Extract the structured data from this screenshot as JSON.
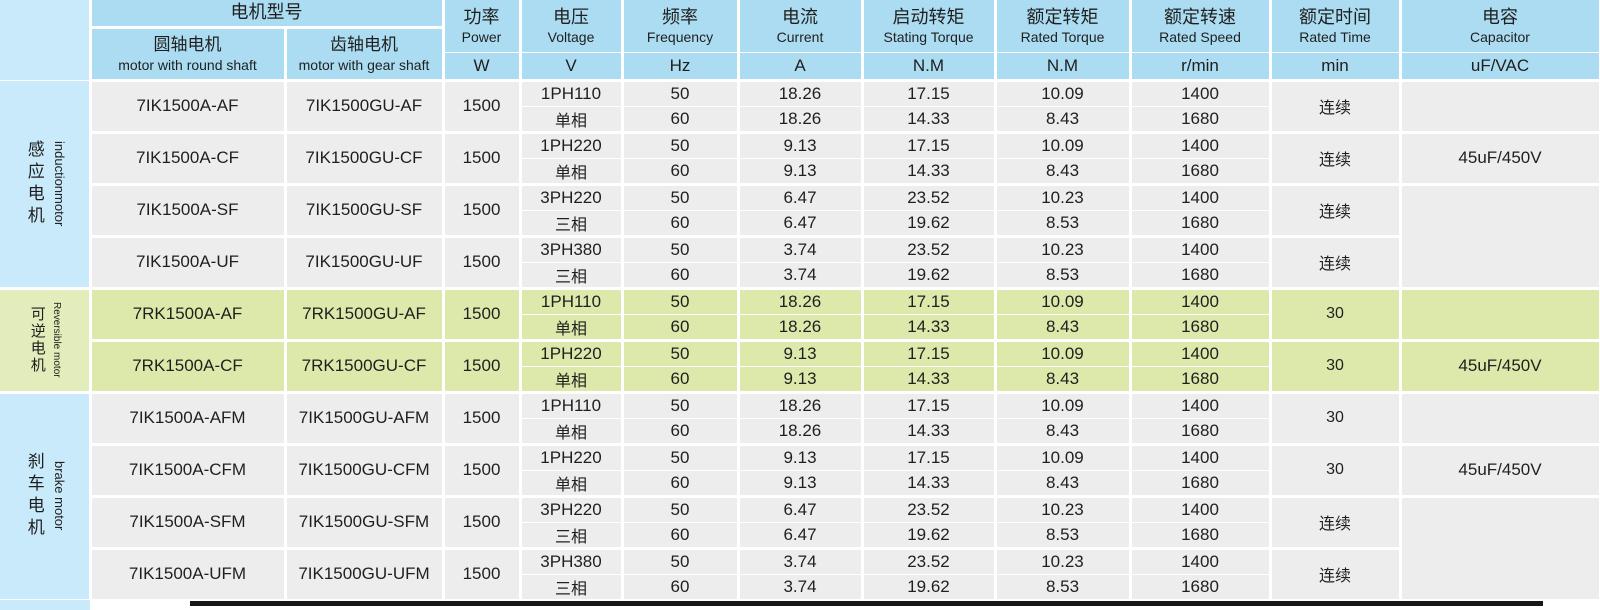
{
  "colors": {
    "header_blue": "#abdcf2",
    "label_blue": "#c8eafa",
    "row_gray": "#ededed",
    "green_row": "#dde9ab",
    "green_label": "#e3edbc",
    "border_white": "#ffffff",
    "bottom_rule": "#171717"
  },
  "table": {
    "header": {
      "model_group": "电机型号",
      "columns": [
        {
          "cn": "圆轴电机",
          "en": "motor with round shaft"
        },
        {
          "cn": "齿轴电机",
          "en": "motor with gear shaft"
        },
        {
          "cn": "功率",
          "en": "Power",
          "unit": "W"
        },
        {
          "cn": "电压",
          "en": "Voltage",
          "unit": "V"
        },
        {
          "cn": "频率",
          "en": "Frequency",
          "unit": "Hz"
        },
        {
          "cn": "电流",
          "en": "Current",
          "unit": "A"
        },
        {
          "cn": "启动转矩",
          "en": "Stating Torque",
          "unit": "N.M"
        },
        {
          "cn": "额定转矩",
          "en": "Rated Torque",
          "unit": "N.M"
        },
        {
          "cn": "额定转速",
          "en": "Rated Speed",
          "unit": "r/min"
        },
        {
          "cn": "额定时间",
          "en": "Rated Time",
          "unit": "min"
        },
        {
          "cn": "电容",
          "en": "Capacitor",
          "unit": "uF/VAC"
        }
      ]
    },
    "groups": [
      {
        "label_cn": "感应电机",
        "label_en": "inductionmotor",
        "theme": "gray",
        "rows": [
          {
            "round": "7IK1500A-AF",
            "gear": "7IK1500GU-AF",
            "power": "1500",
            "voltage": "1PH110",
            "phase": "单相",
            "time": "连续",
            "capacitor": {
              "text": "",
              "span": 1
            },
            "sub": [
              {
                "freq": "50",
                "current": "18.26",
                "start_torque": "17.15",
                "rated_torque": "10.09",
                "speed": "1400"
              },
              {
                "freq": "60",
                "current": "18.26",
                "start_torque": "14.33",
                "rated_torque": "8.43",
                "speed": "1680"
              }
            ]
          },
          {
            "round": "7IK1500A-CF",
            "gear": "7IK1500GU-CF",
            "power": "1500",
            "voltage": "1PH220",
            "phase": "单相",
            "time": "连续",
            "capacitor": {
              "text": "45uF/450V",
              "span": 1
            },
            "sub": [
              {
                "freq": "50",
                "current": "9.13",
                "start_torque": "17.15",
                "rated_torque": "10.09",
                "speed": "1400"
              },
              {
                "freq": "60",
                "current": "9.13",
                "start_torque": "14.33",
                "rated_torque": "8.43",
                "speed": "1680"
              }
            ]
          },
          {
            "round": "7IK1500A-SF",
            "gear": "7IK1500GU-SF",
            "power": "1500",
            "voltage": "3PH220",
            "phase": "三相",
            "time": "连续",
            "capacitor": {
              "text": "",
              "span": 2
            },
            "sub": [
              {
                "freq": "50",
                "current": "6.47",
                "start_torque": "23.52",
                "rated_torque": "10.23",
                "speed": "1400"
              },
              {
                "freq": "60",
                "current": "6.47",
                "start_torque": "19.62",
                "rated_torque": "8.53",
                "speed": "1680"
              }
            ]
          },
          {
            "round": "7IK1500A-UF",
            "gear": "7IK1500GU-UF",
            "power": "1500",
            "voltage": "3PH380",
            "phase": "三相",
            "time": "连续",
            "capacitor": null,
            "sub": [
              {
                "freq": "50",
                "current": "3.74",
                "start_torque": "23.52",
                "rated_torque": "10.23",
                "speed": "1400"
              },
              {
                "freq": "60",
                "current": "3.74",
                "start_torque": "19.62",
                "rated_torque": "8.53",
                "speed": "1680"
              }
            ]
          }
        ]
      },
      {
        "label_cn": "可逆电机",
        "label_en": "Reversible motor",
        "theme": "green",
        "rows": [
          {
            "round": "7RK1500A-AF",
            "gear": "7RK1500GU-AF",
            "power": "1500",
            "voltage": "1PH110",
            "phase": "单相",
            "time": "30",
            "capacitor": {
              "text": "",
              "span": 1
            },
            "sub": [
              {
                "freq": "50",
                "current": "18.26",
                "start_torque": "17.15",
                "rated_torque": "10.09",
                "speed": "1400"
              },
              {
                "freq": "60",
                "current": "18.26",
                "start_torque": "14.33",
                "rated_torque": "8.43",
                "speed": "1680"
              }
            ]
          },
          {
            "round": "7RK1500A-CF",
            "gear": "7RK1500GU-CF",
            "power": "1500",
            "voltage": "1PH220",
            "phase": "单相",
            "time": "30",
            "capacitor": {
              "text": "45uF/450V",
              "span": 1
            },
            "sub": [
              {
                "freq": "50",
                "current": "9.13",
                "start_torque": "17.15",
                "rated_torque": "10.09",
                "speed": "1400"
              },
              {
                "freq": "60",
                "current": "9.13",
                "start_torque": "14.33",
                "rated_torque": "8.43",
                "speed": "1680"
              }
            ]
          }
        ]
      },
      {
        "label_cn": "刹车电机",
        "label_en": "brake motor",
        "theme": "gray",
        "rows": [
          {
            "round": "7IK1500A-AFM",
            "gear": "7IK1500GU-AFM",
            "power": "1500",
            "voltage": "1PH110",
            "phase": "单相",
            "time": "30",
            "capacitor": {
              "text": "",
              "span": 1
            },
            "sub": [
              {
                "freq": "50",
                "current": "18.26",
                "start_torque": "17.15",
                "rated_torque": "10.09",
                "speed": "1400"
              },
              {
                "freq": "60",
                "current": "18.26",
                "start_torque": "14.33",
                "rated_torque": "8.43",
                "speed": "1680"
              }
            ]
          },
          {
            "round": "7IK1500A-CFM",
            "gear": "7IK1500GU-CFM",
            "power": "1500",
            "voltage": "1PH220",
            "phase": "单相",
            "time": "30",
            "capacitor": {
              "text": "45uF/450V",
              "span": 1
            },
            "sub": [
              {
                "freq": "50",
                "current": "9.13",
                "start_torque": "17.15",
                "rated_torque": "10.09",
                "speed": "1400"
              },
              {
                "freq": "60",
                "current": "9.13",
                "start_torque": "14.33",
                "rated_torque": "8.43",
                "speed": "1680"
              }
            ]
          },
          {
            "round": "7IK1500A-SFM",
            "gear": "7IK1500GU-SFM",
            "power": "1500",
            "voltage": "3PH220",
            "phase": "三相",
            "time": "连续",
            "capacitor": {
              "text": "",
              "span": 2
            },
            "sub": [
              {
                "freq": "50",
                "current": "6.47",
                "start_torque": "23.52",
                "rated_torque": "10.23",
                "speed": "1400"
              },
              {
                "freq": "60",
                "current": "6.47",
                "start_torque": "19.62",
                "rated_torque": "8.53",
                "speed": "1680"
              }
            ]
          },
          {
            "round": "7IK1500A-UFM",
            "gear": "7IK1500GU-UFM",
            "power": "1500",
            "voltage": "3PH380",
            "phase": "三相",
            "time": "连续",
            "capacitor": null,
            "sub": [
              {
                "freq": "50",
                "current": "3.74",
                "start_torque": "23.52",
                "rated_torque": "10.23",
                "speed": "1400"
              },
              {
                "freq": "60",
                "current": "3.74",
                "start_torque": "19.62",
                "rated_torque": "8.53",
                "speed": "1680"
              }
            ]
          }
        ]
      }
    ]
  }
}
